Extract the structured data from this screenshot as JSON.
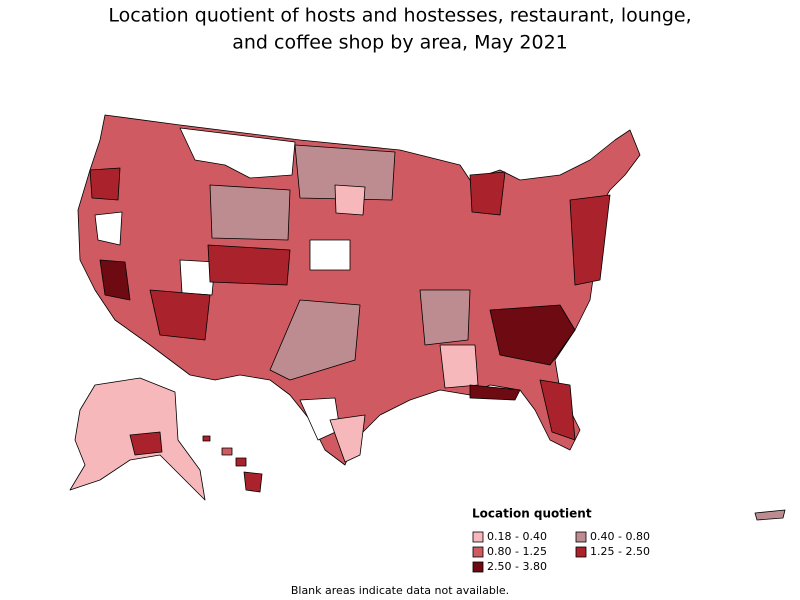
{
  "title_lines": [
    "Location quotient of hosts and hostesses, restaurant, lounge,",
    "and coffee shop by area, May 2021"
  ],
  "legend": {
    "title": "Location quotient",
    "items": [
      {
        "label": "0.18 - 0.40",
        "color": "#f7b8bc"
      },
      {
        "label": "0.40 - 0.80",
        "color": "#bd8c90"
      },
      {
        "label": "0.80 - 1.25",
        "color": "#cf5a62"
      },
      {
        "label": "1.25 - 2.50",
        "color": "#a9222c"
      },
      {
        "label": "2.50 - 3.80",
        "color": "#6e0a12"
      }
    ]
  },
  "footnote": "Blank areas indicate data not available."
}
